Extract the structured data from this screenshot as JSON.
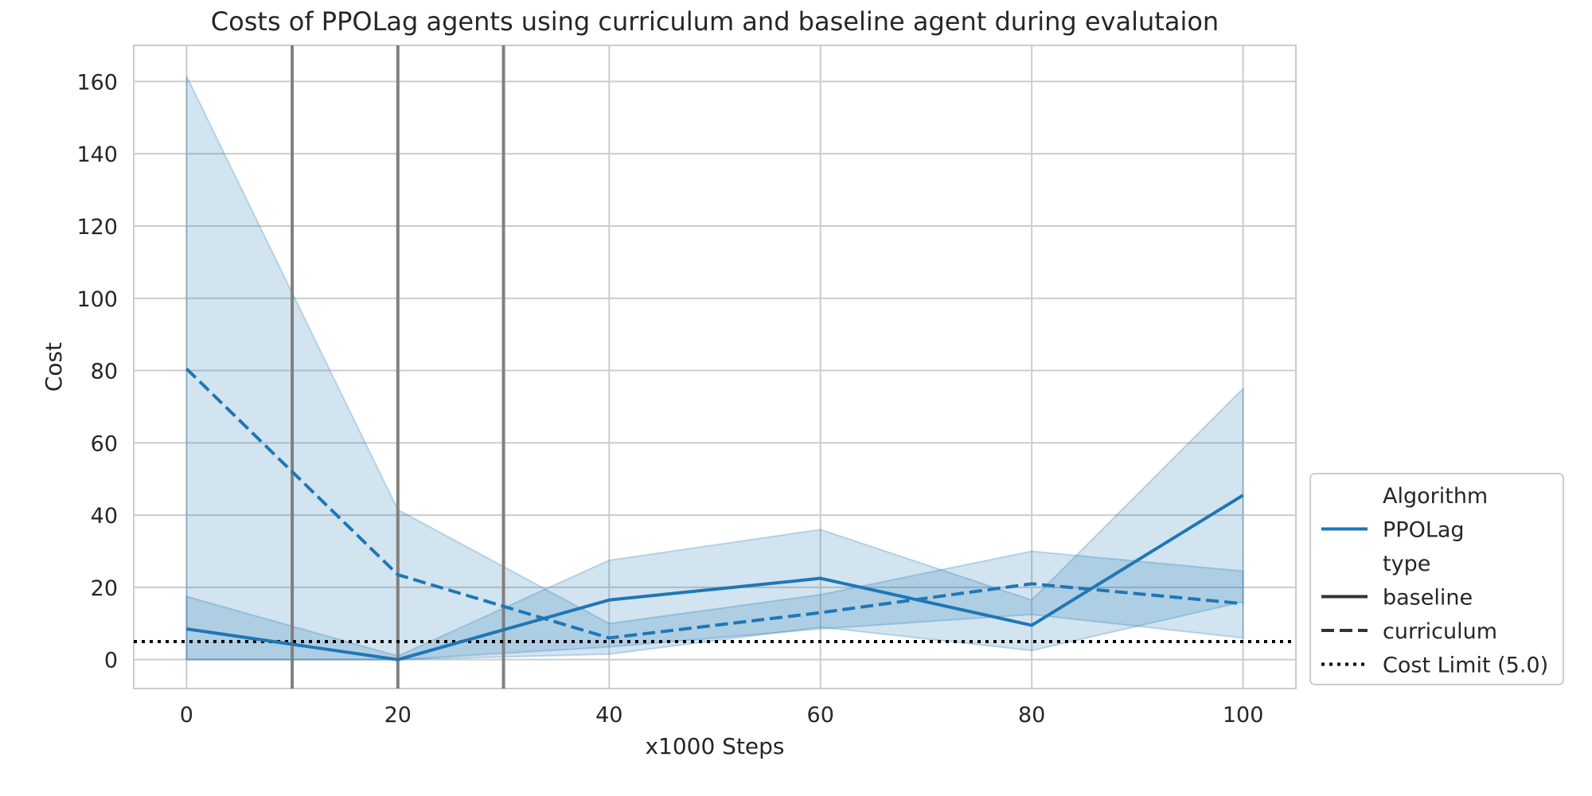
{
  "chart_data": {
    "type": "line",
    "title": "Costs of PPOLag agents using curriculum and baseline agent during evalutaion",
    "xlabel": "x1000 Steps",
    "ylabel": "Cost",
    "xlim": [
      -5,
      105
    ],
    "ylim": [
      -8,
      170
    ],
    "xticks": [
      0,
      20,
      40,
      60,
      80,
      100
    ],
    "yticks": [
      0,
      20,
      40,
      60,
      80,
      100,
      120,
      140,
      160
    ],
    "grid": true,
    "color": "#1f77b4",
    "series": [
      {
        "name": "curriculum",
        "style": "dashed",
        "x": [
          0,
          20,
          40,
          60,
          80,
          100
        ],
        "y": [
          80.5,
          23.5,
          6.0,
          13.0,
          21.0,
          15.5
        ],
        "lower": [
          0,
          0,
          3.5,
          8.5,
          12.5,
          6.0
        ],
        "upper": [
          161.5,
          41.5,
          10.0,
          18.0,
          30.0,
          24.5
        ]
      },
      {
        "name": "baseline",
        "style": "solid",
        "x": [
          0,
          20,
          40,
          60,
          80,
          100
        ],
        "y": [
          8.5,
          0.0,
          16.5,
          22.5,
          9.5,
          45.5
        ],
        "lower": [
          0,
          0,
          1.5,
          9.0,
          2.5,
          16.0
        ],
        "upper": [
          17.5,
          1.0,
          27.5,
          36.0,
          16.5,
          75.0
        ]
      }
    ],
    "cost_limit": 5.0,
    "vlines": [
      10,
      20,
      30
    ],
    "legend": {
      "placement": "lower-right-outside",
      "entries": [
        {
          "label": "Algorithm",
          "style": "header"
        },
        {
          "label": "PPOLag",
          "style": "solid-color"
        },
        {
          "label": "type",
          "style": "header"
        },
        {
          "label": "baseline",
          "style": "solid"
        },
        {
          "label": "curriculum",
          "style": "dashed"
        },
        {
          "label": "Cost Limit (5.0)",
          "style": "dotted"
        }
      ]
    }
  }
}
